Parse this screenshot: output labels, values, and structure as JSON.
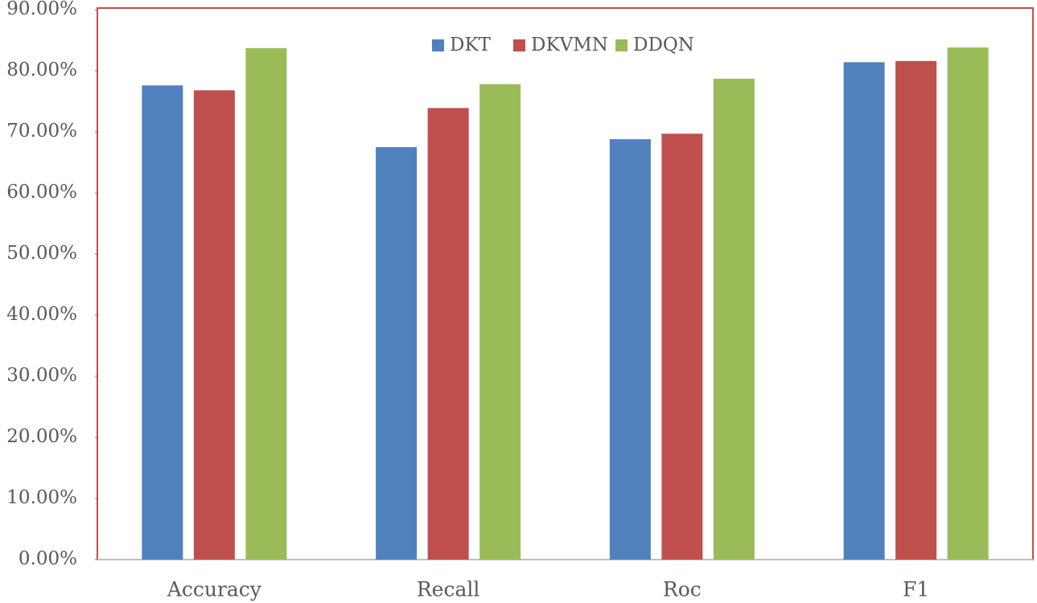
{
  "chart_data": {
    "type": "bar",
    "categories": [
      "Accuracy",
      "Recall",
      "Roc",
      "F1"
    ],
    "series": [
      {
        "name": "DKT",
        "color": "#4f81bd",
        "values": [
          77.6,
          67.5,
          68.8,
          81.4
        ]
      },
      {
        "name": "DKVMN",
        "color": "#c0504d",
        "values": [
          76.8,
          73.9,
          69.7,
          81.6
        ]
      },
      {
        "name": "DDQN",
        "color": "#9bbb59",
        "values": [
          83.7,
          77.8,
          78.7,
          83.8
        ]
      }
    ],
    "ylim": [
      0,
      90
    ],
    "yticks": [
      {
        "value": 0,
        "label": "0.00%"
      },
      {
        "value": 10,
        "label": "10.00%"
      },
      {
        "value": 20,
        "label": "20.00%"
      },
      {
        "value": 30,
        "label": "30.00%"
      },
      {
        "value": 40,
        "label": "40.00%"
      },
      {
        "value": 50,
        "label": "50.00%"
      },
      {
        "value": 60,
        "label": "60.00%"
      },
      {
        "value": 70,
        "label": "70.00%"
      },
      {
        "value": 80,
        "label": "80.00%"
      },
      {
        "value": 90,
        "label": "90.00%"
      }
    ],
    "legend": "top",
    "grid": false
  }
}
